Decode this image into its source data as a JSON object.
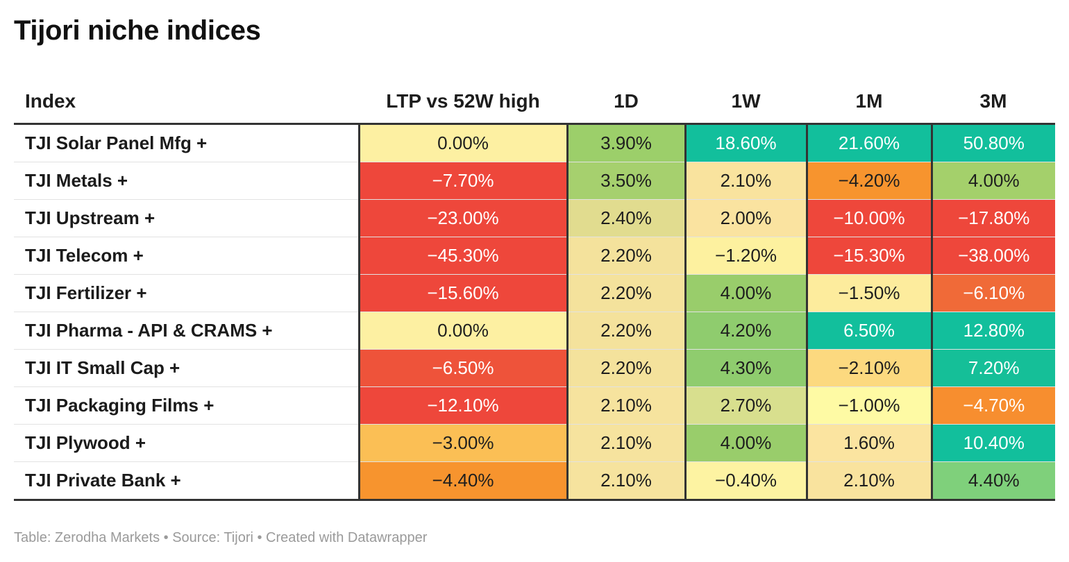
{
  "title": "Tijori niche indices",
  "footer": "Table: Zerodha Markets • Source: Tijori • Created with Datawrapper",
  "chart_data": {
    "type": "table",
    "title": "Tijori niche indices",
    "columns": [
      "Index",
      "LTP vs 52W high",
      "1D",
      "1W",
      "1M",
      "3M"
    ],
    "rows": [
      {
        "label": "TJI Solar Panel Mfg +",
        "values": [
          0.0,
          3.9,
          18.6,
          21.6,
          50.8
        ],
        "display": [
          "0.00%",
          "3.90%",
          "18.60%",
          "21.60%",
          "50.80%"
        ],
        "colors": [
          "#fdf0a2",
          "#9ccf6a",
          "#12bf9c",
          "#12bf9c",
          "#12bf9c"
        ]
      },
      {
        "label": "TJI Metals +",
        "values": [
          -7.7,
          3.5,
          2.1,
          -4.2,
          4.0
        ],
        "display": [
          "−7.70%",
          "3.50%",
          "2.10%",
          "−4.20%",
          "4.00%"
        ],
        "colors": [
          "#ee473b",
          "#a6d06e",
          "#f9e39e",
          "#f7942e",
          "#a4d06b"
        ]
      },
      {
        "label": "TJI Upstream +",
        "values": [
          -23.0,
          2.4,
          2.0,
          -10.0,
          -17.8
        ],
        "display": [
          "−23.00%",
          "2.40%",
          "2.00%",
          "−10.00%",
          "−17.80%"
        ],
        "colors": [
          "#ee473b",
          "#e1dc8f",
          "#fae3a0",
          "#ee473b",
          "#ee473b"
        ]
      },
      {
        "label": "TJI Telecom +",
        "values": [
          -45.3,
          2.2,
          -1.2,
          -15.3,
          -38.0
        ],
        "display": [
          "−45.30%",
          "2.20%",
          "−1.20%",
          "−15.30%",
          "−38.00%"
        ],
        "colors": [
          "#ee473b",
          "#f4e29c",
          "#fdf19f",
          "#ee473b",
          "#ee473b"
        ]
      },
      {
        "label": "TJI Fertilizer +",
        "values": [
          -15.6,
          2.2,
          4.0,
          -1.5,
          -6.1
        ],
        "display": [
          "−15.60%",
          "2.20%",
          "4.00%",
          "−1.50%",
          "−6.10%"
        ],
        "colors": [
          "#ee473b",
          "#f4e29c",
          "#99cd6b",
          "#fdec9d",
          "#f06a38"
        ]
      },
      {
        "label": "TJI Pharma - API & CRAMS +",
        "values": [
          0.0,
          2.2,
          4.2,
          6.5,
          12.8
        ],
        "display": [
          "0.00%",
          "2.20%",
          "4.20%",
          "6.50%",
          "12.80%"
        ],
        "colors": [
          "#fdf0a2",
          "#f4e29c",
          "#8fcc6e",
          "#12bf9c",
          "#12bf9c"
        ]
      },
      {
        "label": "TJI IT Small Cap +",
        "values": [
          -6.5,
          2.2,
          4.3,
          -2.1,
          7.2
        ],
        "display": [
          "−6.50%",
          "2.20%",
          "4.30%",
          "−2.10%",
          "7.20%"
        ],
        "colors": [
          "#ee533a",
          "#f4e29c",
          "#8fcc6e",
          "#fcd97f",
          "#15bf98"
        ]
      },
      {
        "label": "TJI Packaging Films +",
        "values": [
          -12.1,
          2.1,
          2.7,
          -1.0,
          -4.7
        ],
        "display": [
          "−12.10%",
          "2.10%",
          "2.70%",
          "−1.00%",
          "−4.70%"
        ],
        "colors": [
          "#ee473b",
          "#f6e39e",
          "#d8df8e",
          "#fefaa4",
          "#f78e2f"
        ]
      },
      {
        "label": "TJI Plywood +",
        "values": [
          -3.0,
          2.1,
          4.0,
          1.6,
          10.4
        ],
        "display": [
          "−3.00%",
          "2.10%",
          "4.00%",
          "1.60%",
          "10.40%"
        ],
        "colors": [
          "#fbbf55",
          "#f6e39e",
          "#99cd6b",
          "#fbe4a0",
          "#12bf9c"
        ]
      },
      {
        "label": "TJI Private Bank +",
        "values": [
          -4.4,
          2.1,
          -0.4,
          2.1,
          4.4
        ],
        "display": [
          "−4.40%",
          "2.10%",
          "−0.40%",
          "2.10%",
          "4.40%"
        ],
        "colors": [
          "#f7942e",
          "#f6e39e",
          "#fdf3a2",
          "#f9e39e",
          "#7fd07b"
        ]
      }
    ]
  }
}
